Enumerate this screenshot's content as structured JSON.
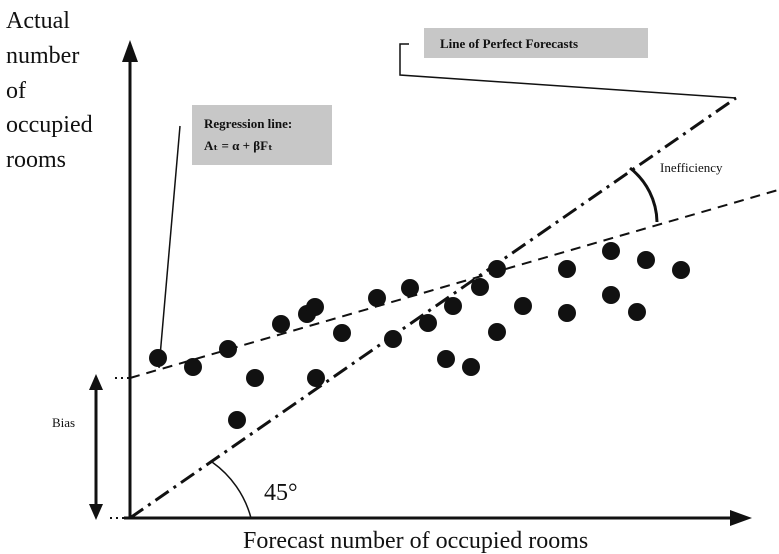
{
  "chart_data": {
    "type": "scatter",
    "ylabel_lines": [
      "Actual",
      "number",
      "of",
      "occupied",
      "rooms"
    ],
    "xlabel": "Forecast number of occupied rooms",
    "annotations": {
      "perfect_forecast": "Line of Perfect Forecasts",
      "regression_title": "Regression line:",
      "regression_equation": "Aₜ = α + βFₜ",
      "inefficiency": "Inefficiency",
      "bias": "Bias",
      "angle": "45°"
    },
    "points": [
      {
        "x": 158,
        "y": 160
      },
      {
        "x": 193,
        "y": 151
      },
      {
        "x": 228,
        "y": 169
      },
      {
        "x": 237,
        "y": 98
      },
      {
        "x": 255,
        "y": 140
      },
      {
        "x": 281,
        "y": 194
      },
      {
        "x": 307,
        "y": 204
      },
      {
        "x": 315,
        "y": 211
      },
      {
        "x": 316,
        "y": 140
      },
      {
        "x": 342,
        "y": 185
      },
      {
        "x": 377,
        "y": 220
      },
      {
        "x": 393,
        "y": 179
      },
      {
        "x": 410,
        "y": 230
      },
      {
        "x": 428,
        "y": 195
      },
      {
        "x": 446,
        "y": 159
      },
      {
        "x": 453,
        "y": 212
      },
      {
        "x": 471,
        "y": 151
      },
      {
        "x": 480,
        "y": 231
      },
      {
        "x": 497,
        "y": 186
      },
      {
        "x": 497,
        "y": 249
      },
      {
        "x": 523,
        "y": 212
      },
      {
        "x": 567,
        "y": 205
      },
      {
        "x": 567,
        "y": 249
      },
      {
        "x": 611,
        "y": 223
      },
      {
        "x": 611,
        "y": 267
      },
      {
        "x": 637,
        "y": 206
      },
      {
        "x": 646,
        "y": 258
      },
      {
        "x": 681,
        "y": 248
      }
    ],
    "regression_line": {
      "intercept": 108,
      "slope": 0.23
    },
    "perfect_forecast_line": {
      "slope": 1
    },
    "xlim": [
      0,
      779
    ],
    "ylim": [
      0,
      460
    ]
  }
}
